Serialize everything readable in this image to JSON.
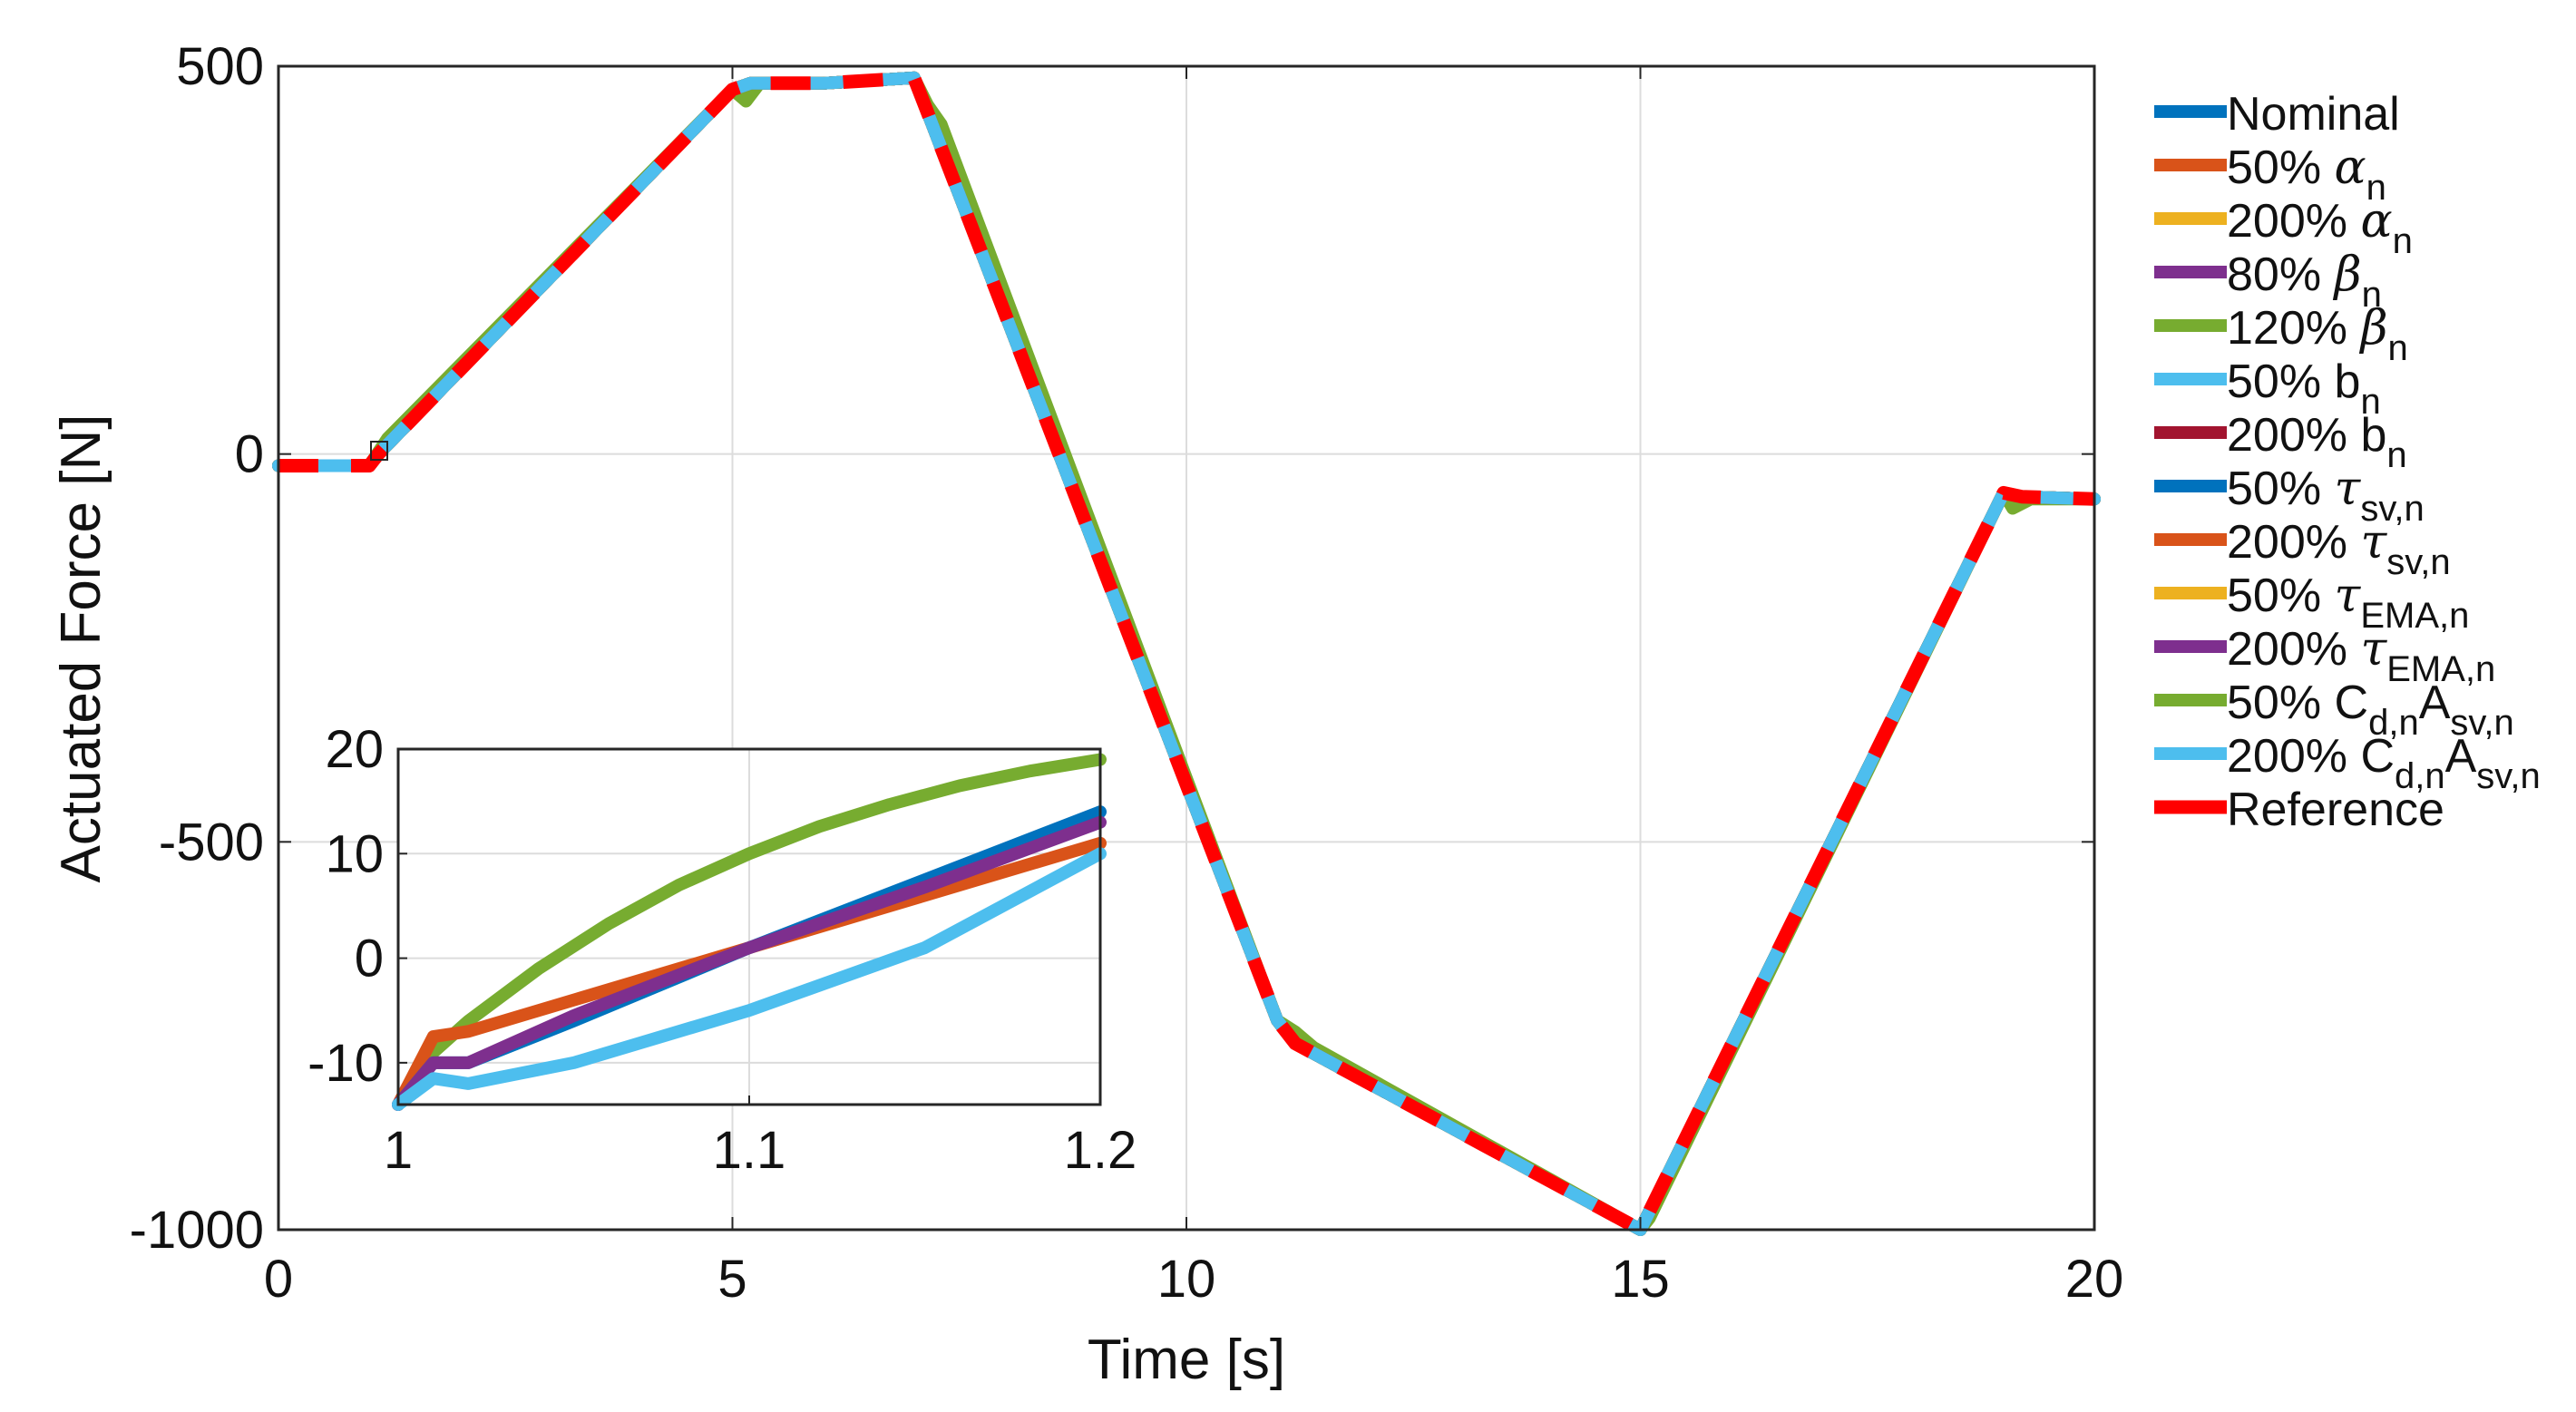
{
  "chart_data": {
    "type": "line",
    "xlabel": "Time [s]",
    "ylabel": "Actuated Force [N]",
    "xlim": [
      0,
      20
    ],
    "ylim": [
      -1000,
      500
    ],
    "grid": true,
    "x_ticks": [
      "0",
      "5",
      "10",
      "15",
      "20"
    ],
    "y_ticks": [
      "500",
      "0",
      "-500",
      "-1000"
    ],
    "legend_position": "outside-right",
    "series": [
      {
        "name": "Nominal",
        "label_main": "Nominal",
        "label_sym": "",
        "label_sub": "",
        "label_tail": "",
        "label_tail_sub": "",
        "color": "#0072BD",
        "dashed": false,
        "x": [
          0,
          1,
          1.1,
          5,
          5.2,
          6,
          7,
          7.2,
          11,
          11.2,
          15,
          19,
          19.2,
          20
        ],
        "y": [
          -15,
          -15,
          0,
          470,
          478,
          478,
          485,
          425,
          -730,
          -760,
          -1000,
          -50,
          -55,
          -58
        ]
      },
      {
        "name": "50% alpha_n",
        "label_main": "50% ",
        "label_sym": "α",
        "label_sub": "n",
        "label_tail": "",
        "label_tail_sub": "",
        "color": "#D95319",
        "dashed": false,
        "x": [
          0,
          1,
          1.1,
          5,
          5.2,
          6,
          7,
          7.2,
          11,
          11.2,
          15,
          19,
          19.2,
          20
        ],
        "y": [
          -15,
          -15,
          0,
          470,
          478,
          478,
          485,
          425,
          -730,
          -760,
          -1000,
          -50,
          -55,
          -58
        ]
      },
      {
        "name": "200% alpha_n",
        "label_main": "200% ",
        "label_sym": "α",
        "label_sub": "n",
        "label_tail": "",
        "label_tail_sub": "",
        "color": "#EDB120",
        "dashed": false,
        "x": [
          0,
          1,
          1.1,
          5,
          5.2,
          6,
          7,
          7.2,
          11,
          11.2,
          15,
          19,
          19.2,
          20
        ],
        "y": [
          -15,
          -15,
          0,
          470,
          478,
          478,
          485,
          425,
          -730,
          -760,
          -1000,
          -50,
          -55,
          -58
        ]
      },
      {
        "name": "80% beta_n",
        "label_main": "80% ",
        "label_sym": "β",
        "label_sub": "n",
        "label_tail": "",
        "label_tail_sub": "",
        "color": "#7E2F8E",
        "dashed": false,
        "x": [
          0,
          1,
          1.1,
          5,
          5.2,
          6,
          7,
          7.2,
          11,
          11.2,
          15,
          19,
          19.2,
          20
        ],
        "y": [
          -15,
          -15,
          0,
          470,
          478,
          478,
          485,
          425,
          -730,
          -760,
          -1000,
          -50,
          -55,
          -58
        ]
      },
      {
        "name": "120% beta_n",
        "label_main": "120% ",
        "label_sym": "β",
        "label_sub": "n",
        "label_tail": "",
        "label_tail_sub": "",
        "color": "#77AC30",
        "dashed": false,
        "x": [
          0,
          1,
          1.2,
          5,
          5.15,
          5.3,
          6,
          7,
          7.15,
          7.3,
          11,
          11.2,
          11.4,
          15,
          15.1,
          19,
          19.1,
          19.3,
          20
        ],
        "y": [
          -15,
          -15,
          20,
          470,
          455,
          478,
          478,
          485,
          450,
          425,
          -730,
          -745,
          -765,
          -1000,
          -985,
          -50,
          -70,
          -58,
          -58
        ]
      },
      {
        "name": "50% b_n",
        "label_main": "50% b",
        "label_sym": "",
        "label_sub": "n",
        "label_tail": "",
        "label_tail_sub": "",
        "color": "#4DBEEE",
        "dashed": false,
        "x": [
          0,
          1,
          1.1,
          5,
          5.2,
          6,
          7,
          7.2,
          11,
          11.2,
          15,
          19,
          19.2,
          20
        ],
        "y": [
          -15,
          -15,
          0,
          470,
          478,
          478,
          485,
          425,
          -730,
          -760,
          -1000,
          -50,
          -55,
          -58
        ]
      },
      {
        "name": "200% b_n",
        "label_main": "200% b",
        "label_sym": "",
        "label_sub": "n",
        "label_tail": "",
        "label_tail_sub": "",
        "color": "#A2142F",
        "dashed": false,
        "x": [
          0,
          1,
          1.1,
          5,
          5.2,
          6,
          7,
          7.2,
          11,
          11.2,
          15,
          19,
          19.2,
          20
        ],
        "y": [
          -15,
          -15,
          0,
          470,
          478,
          478,
          485,
          425,
          -730,
          -760,
          -1000,
          -50,
          -55,
          -58
        ]
      },
      {
        "name": "50% tau_sv,n",
        "label_main": "50% ",
        "label_sym": "τ",
        "label_sub": "sv,n",
        "label_tail": "",
        "label_tail_sub": "",
        "color": "#0072BD",
        "dashed": false,
        "x": [
          0,
          1,
          1.1,
          5,
          5.2,
          6,
          7,
          7.2,
          11,
          11.2,
          15,
          19,
          19.2,
          20
        ],
        "y": [
          -15,
          -15,
          0,
          470,
          478,
          478,
          485,
          425,
          -730,
          -760,
          -1000,
          -50,
          -55,
          -58
        ]
      },
      {
        "name": "200% tau_sv,n",
        "label_main": "200% ",
        "label_sym": "τ",
        "label_sub": "sv,n",
        "label_tail": "",
        "label_tail_sub": "",
        "color": "#D95319",
        "dashed": false,
        "x": [
          0,
          1,
          1.1,
          5,
          5.2,
          6,
          7,
          7.2,
          11,
          11.2,
          15,
          19,
          19.2,
          20
        ],
        "y": [
          -15,
          -15,
          0,
          470,
          478,
          478,
          485,
          425,
          -730,
          -760,
          -1000,
          -50,
          -55,
          -58
        ]
      },
      {
        "name": "50% tau_EMA,n",
        "label_main": "50% ",
        "label_sym": "τ",
        "label_sub": "EMA,n",
        "label_tail": "",
        "label_tail_sub": "",
        "color": "#EDB120",
        "dashed": false,
        "x": [
          0,
          1,
          1.1,
          5,
          5.2,
          6,
          7,
          7.2,
          11,
          11.2,
          15,
          19,
          19.2,
          20
        ],
        "y": [
          -15,
          -15,
          0,
          470,
          478,
          478,
          485,
          425,
          -730,
          -760,
          -1000,
          -50,
          -55,
          -58
        ]
      },
      {
        "name": "200% tau_EMA,n",
        "label_main": "200% ",
        "label_sym": "τ",
        "label_sub": "EMA,n",
        "label_tail": "",
        "label_tail_sub": "",
        "color": "#7E2F8E",
        "dashed": false,
        "x": [
          0,
          1,
          1.1,
          5,
          5.2,
          6,
          7,
          7.2,
          11,
          11.2,
          15,
          19,
          19.2,
          20
        ],
        "y": [
          -15,
          -15,
          0,
          470,
          478,
          478,
          485,
          425,
          -730,
          -760,
          -1000,
          -50,
          -55,
          -58
        ]
      },
      {
        "name": "50% C_d,n A_sv,n",
        "label_main": "50% C",
        "label_sym": "",
        "label_sub": "d,n",
        "label_tail": "A",
        "label_tail_sub": "sv,n",
        "color": "#77AC30",
        "dashed": false,
        "x": [
          0,
          1,
          1.1,
          5,
          5.2,
          6,
          7,
          7.2,
          11,
          11.2,
          15,
          19,
          19.2,
          20
        ],
        "y": [
          -15,
          -15,
          0,
          470,
          478,
          478,
          485,
          425,
          -730,
          -760,
          -1000,
          -50,
          -55,
          -58
        ]
      },
      {
        "name": "200% C_d,n A_sv,n",
        "label_main": "200% C",
        "label_sym": "",
        "label_sub": "d,n",
        "label_tail": "A",
        "label_tail_sub": "sv,n",
        "color": "#4DBEEE",
        "dashed": false,
        "x": [
          0,
          1,
          1.1,
          5,
          5.2,
          6,
          7,
          7.2,
          11,
          11.2,
          15,
          19,
          19.2,
          20
        ],
        "y": [
          -15,
          -15,
          0,
          470,
          478,
          478,
          485,
          425,
          -730,
          -760,
          -1000,
          -50,
          -55,
          -58
        ]
      },
      {
        "name": "Reference",
        "label_main": "Reference",
        "label_sym": "",
        "label_sub": "",
        "label_tail": "",
        "label_tail_sub": "",
        "color": "#FF0000",
        "dashed": true,
        "x": [
          0,
          1,
          1.1,
          5,
          5.2,
          6,
          7,
          7.2,
          11,
          11.2,
          15,
          19,
          19.2,
          20
        ],
        "y": [
          -15,
          -15,
          0,
          470,
          478,
          478,
          485,
          425,
          -730,
          -760,
          -1000,
          -50,
          -55,
          -58
        ]
      }
    ],
    "inset": {
      "xlim": [
        1,
        1.2
      ],
      "ylim": [
        -14,
        20
      ],
      "x_ticks": [
        "1",
        "1.1",
        "1.2"
      ],
      "y_ticks": [
        "20",
        "10",
        "0",
        "-10"
      ],
      "grid": true,
      "series": [
        {
          "name": "120% beta_n",
          "color": "#77AC30",
          "x": [
            1,
            1.01,
            1.02,
            1.04,
            1.06,
            1.08,
            1.1,
            1.12,
            1.14,
            1.16,
            1.18,
            1.2
          ],
          "y": [
            -14,
            -9,
            -6,
            -1,
            3.3,
            7,
            10,
            12.6,
            14.7,
            16.5,
            17.9,
            19
          ]
        },
        {
          "name": "200% tau_sv,n",
          "color": "#D95319",
          "x": [
            1,
            1.01,
            1.02,
            1.05,
            1.1,
            1.15,
            1.2
          ],
          "y": [
            -14,
            -7.5,
            -7,
            -4,
            1,
            6,
            11
          ]
        },
        {
          "name": "Nominal",
          "color": "#0072BD",
          "x": [
            1,
            1.01,
            1.02,
            1.05,
            1.1,
            1.15,
            1.2
          ],
          "y": [
            -14,
            -10,
            -10,
            -6,
            1,
            7.5,
            14
          ]
        },
        {
          "name": "200% tau_EMA,n",
          "color": "#7E2F8E",
          "x": [
            1,
            1.01,
            1.02,
            1.05,
            1.1,
            1.15,
            1.2
          ],
          "y": [
            -14,
            -10,
            -10,
            -5.5,
            1,
            6.8,
            13
          ]
        },
        {
          "name": "200% C_d,n A_sv,n",
          "color": "#4DBEEE",
          "x": [
            1,
            1.01,
            1.02,
            1.05,
            1.1,
            1.15,
            1.2
          ],
          "y": [
            -14,
            -11.5,
            -12,
            -10,
            -5,
            1,
            10
          ]
        }
      ]
    }
  }
}
